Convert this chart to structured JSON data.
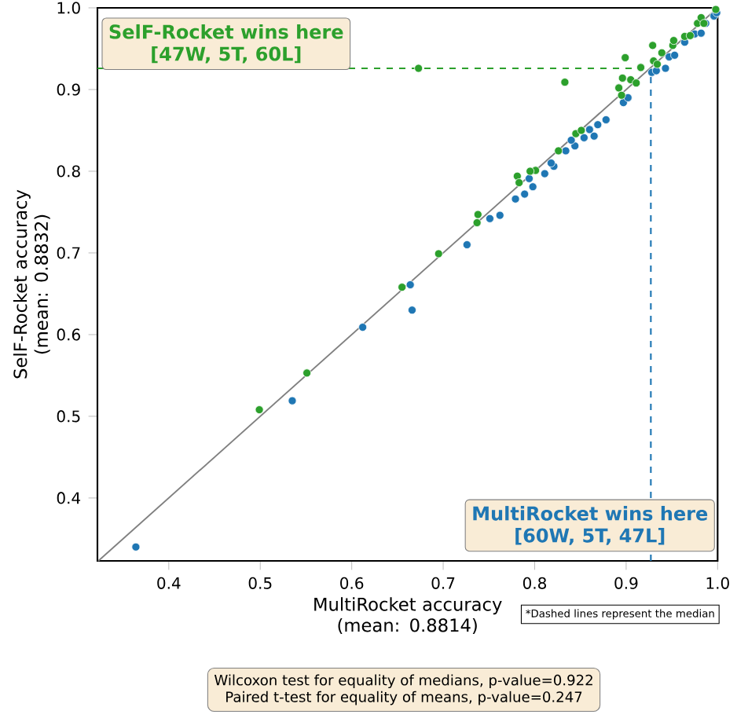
{
  "chart_data": {
    "type": "scatter",
    "xlabel": "MultiRocket accuracy (mean: 0.8814)",
    "ylabel": "SelF-Rocket accuracy (mean: 0.8832)",
    "xlim": [
      0.322,
      1.0
    ],
    "ylim": [
      0.323,
      1.0
    ],
    "xticks": [
      0.4,
      0.5,
      0.6,
      0.7,
      0.8,
      0.9,
      {
        "value": 1.0,
        "label": "1.0"
      }
    ],
    "yticks": [
      0.4,
      0.5,
      0.6,
      0.7,
      0.8,
      0.9,
      {
        "value": 1.0,
        "label": "1.0"
      }
    ],
    "series": [
      {
        "type": "line",
        "color": "#808080",
        "x": [
          0.323,
          1.0
        ],
        "values": [
          0.323,
          1.0
        ]
      },
      {
        "color": "#2ca02c",
        "x": [
          0.673,
          0.833,
          0.899,
          0.929,
          0.916,
          0.896,
          0.905,
          0.892,
          0.895,
          0.911,
          0.93,
          0.934,
          0.939,
          0.951,
          0.952,
          0.964,
          0.97,
          0.978,
          0.982,
          0.985,
          0.998,
          0.845,
          0.851,
          0.826,
          0.801,
          0.795,
          0.781,
          0.783,
          0.738,
          0.737,
          0.695,
          0.655,
          0.499,
          0.551
        ],
        "values": [
          0.926,
          0.909,
          0.939,
          0.954,
          0.927,
          0.914,
          0.912,
          0.902,
          0.893,
          0.908,
          0.935,
          0.931,
          0.945,
          0.954,
          0.96,
          0.965,
          0.966,
          0.981,
          0.988,
          0.981,
          0.998,
          0.846,
          0.85,
          0.825,
          0.801,
          0.8,
          0.794,
          0.786,
          0.747,
          0.737,
          0.699,
          0.658,
          0.508,
          0.553
        ]
      },
      {
        "color": "#1f77b4",
        "x": [
          0.364,
          0.535,
          0.612,
          0.666,
          0.664,
          0.726,
          0.751,
          0.762,
          0.779,
          0.789,
          0.798,
          0.794,
          0.811,
          0.821,
          0.818,
          0.834,
          0.844,
          0.84,
          0.854,
          0.86,
          0.865,
          0.869,
          0.878,
          0.897,
          0.902,
          0.928,
          0.933,
          0.943,
          0.947,
          0.953,
          0.964,
          0.975,
          0.982,
          0.987,
          0.996,
          0.999
        ],
        "values": [
          0.34,
          0.519,
          0.609,
          0.63,
          0.661,
          0.71,
          0.742,
          0.746,
          0.766,
          0.772,
          0.781,
          0.791,
          0.797,
          0.806,
          0.81,
          0.825,
          0.831,
          0.838,
          0.841,
          0.851,
          0.843,
          0.857,
          0.863,
          0.884,
          0.89,
          0.921,
          0.923,
          0.926,
          0.94,
          0.942,
          0.958,
          0.968,
          0.969,
          0.981,
          0.99,
          0.994
        ]
      }
    ],
    "ref_lines": [
      {
        "axis": "y",
        "value": 0.926,
        "color": "#2ca02c",
        "line_style": "dashed"
      },
      {
        "axis": "x",
        "value": 0.927,
        "color": "#1f77b4",
        "line_style": "dashed"
      }
    ],
    "annotations": [
      "SelF-Rocket wins here",
      "[47W, 5T, 60L]",
      "MultiRocket wins here",
      "[60W, 5T, 47L]",
      "*Dashed lines represent the median",
      "Wilcoxon test for equality of medians, p-value=0.922",
      "Paired t-test for equality of means, p-value=0.247"
    ]
  }
}
